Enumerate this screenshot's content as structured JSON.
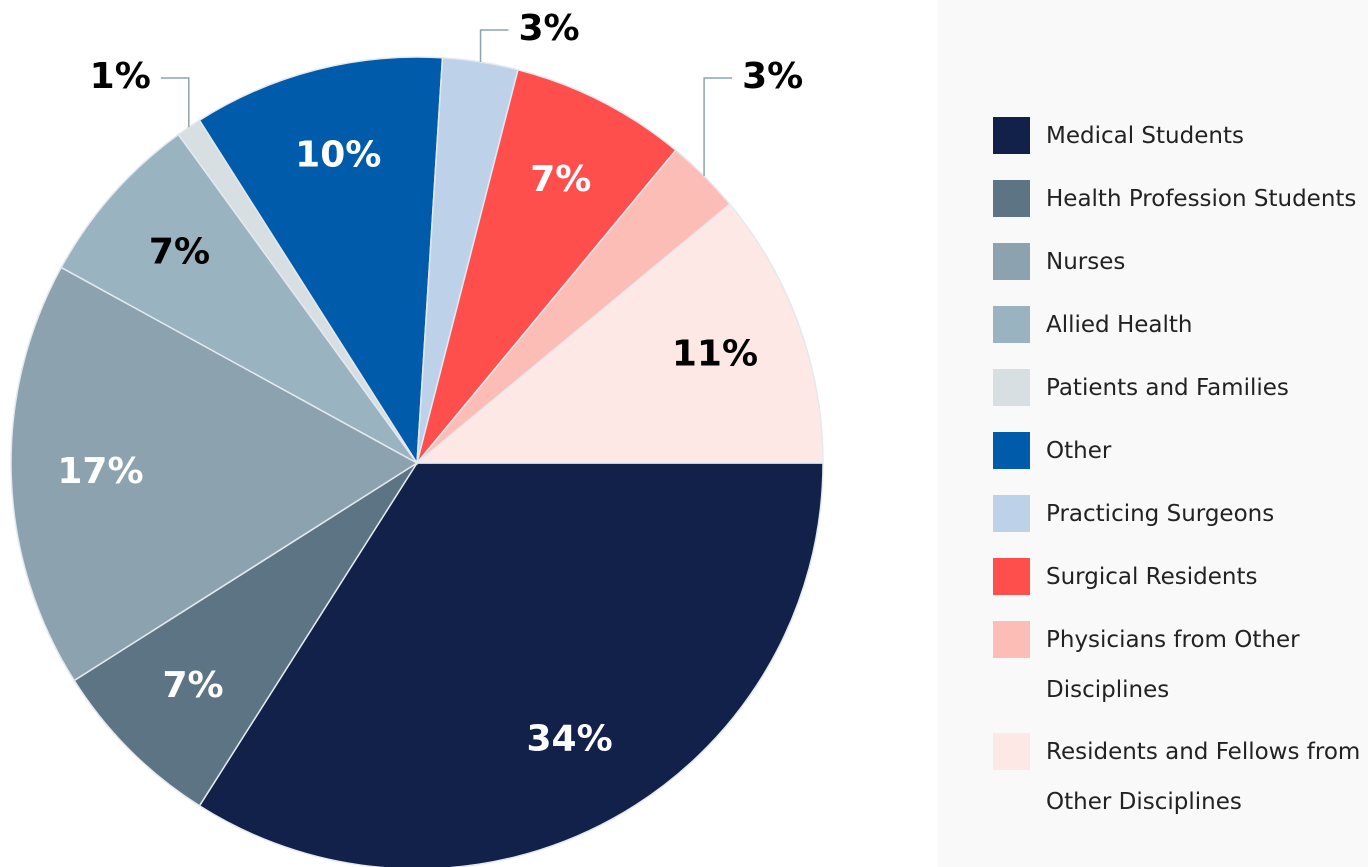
{
  "chart_data": {
    "type": "pie",
    "categories": [
      "Medical Students",
      "Health Profession Students",
      "Nurses",
      "Allied Health",
      "Patients and Families",
      "Other",
      "Practicing Surgeons",
      "Surgical Residents",
      "Physicians from Other Disciplines",
      "Residents and Fellows from Other Disciplines"
    ],
    "values": [
      34,
      7,
      17,
      7,
      1,
      10,
      3,
      7,
      3,
      11
    ],
    "value_labels": [
      "34%",
      "7%",
      "17%",
      "7%",
      "1%",
      "10%",
      "3%",
      "7%",
      "3%",
      "11%"
    ],
    "colors": [
      "#12214a",
      "#5c7483",
      "#8ca3af",
      "#9ab3c0",
      "#d7dfe3",
      "#005cab",
      "#bdd1e8",
      "#ff4f4d",
      "#fdbdb7",
      "#fde8e6"
    ]
  }
}
